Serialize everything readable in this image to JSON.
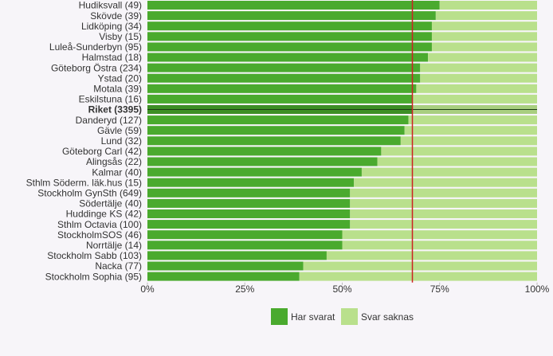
{
  "chart_data": {
    "type": "stacked-barh",
    "categories": [
      "Hudiksvall (49)",
      "Skövde (39)",
      "Lidköping (34)",
      "Visby (15)",
      "Luleå-Sunderbyn (95)",
      "Halmstad (18)",
      "Göteborg Östra (234)",
      "Ystad (20)",
      "Motala (39)",
      "Eskilstuna (16)",
      "Riket (3395)",
      "Danderyd (127)",
      "Gävle (59)",
      "Lund (32)",
      "Göteborg Carl (42)",
      "Alingsås (22)",
      "Kalmar (40)",
      "Sthlm Söderm. läk.hus (15)",
      "Stockholm GynSth (649)",
      "Södertälje (40)",
      "Huddinge KS (42)",
      "Sthlm Octavia (100)",
      "StockholmSOS (46)",
      "Norrtälje (14)",
      "Stockholm Sabb (103)",
      "Nacka (77)",
      "Stockholm Sophia (95)"
    ],
    "series": [
      {
        "name": "Har svarat",
        "color": "#4aaa2e",
        "values": [
          75,
          74,
          73,
          73,
          73,
          72,
          70,
          70,
          69,
          68,
          68,
          67,
          66,
          65,
          60,
          59,
          55,
          53,
          52,
          52,
          52,
          52,
          50,
          50,
          46,
          40,
          39
        ]
      },
      {
        "name": "Svar saknas",
        "color": "#b9e08c",
        "values": [
          25,
          26,
          27,
          27,
          27,
          28,
          30,
          30,
          31,
          32,
          32,
          33,
          34,
          35,
          40,
          41,
          45,
          47,
          48,
          48,
          48,
          48,
          50,
          50,
          54,
          60,
          61
        ]
      }
    ],
    "highlight_index": 10,
    "highlight_colors": [
      "#3d8f25",
      "#a9cf80"
    ],
    "reference_line": 68,
    "reference_color": "#cc2222",
    "xlim": [
      0,
      100
    ],
    "xticks": [
      {
        "value": 0,
        "label": "0%"
      },
      {
        "value": 25,
        "label": "25%"
      },
      {
        "value": 50,
        "label": "50%"
      },
      {
        "value": 75,
        "label": "75%"
      },
      {
        "value": 100,
        "label": "100%"
      }
    ]
  }
}
